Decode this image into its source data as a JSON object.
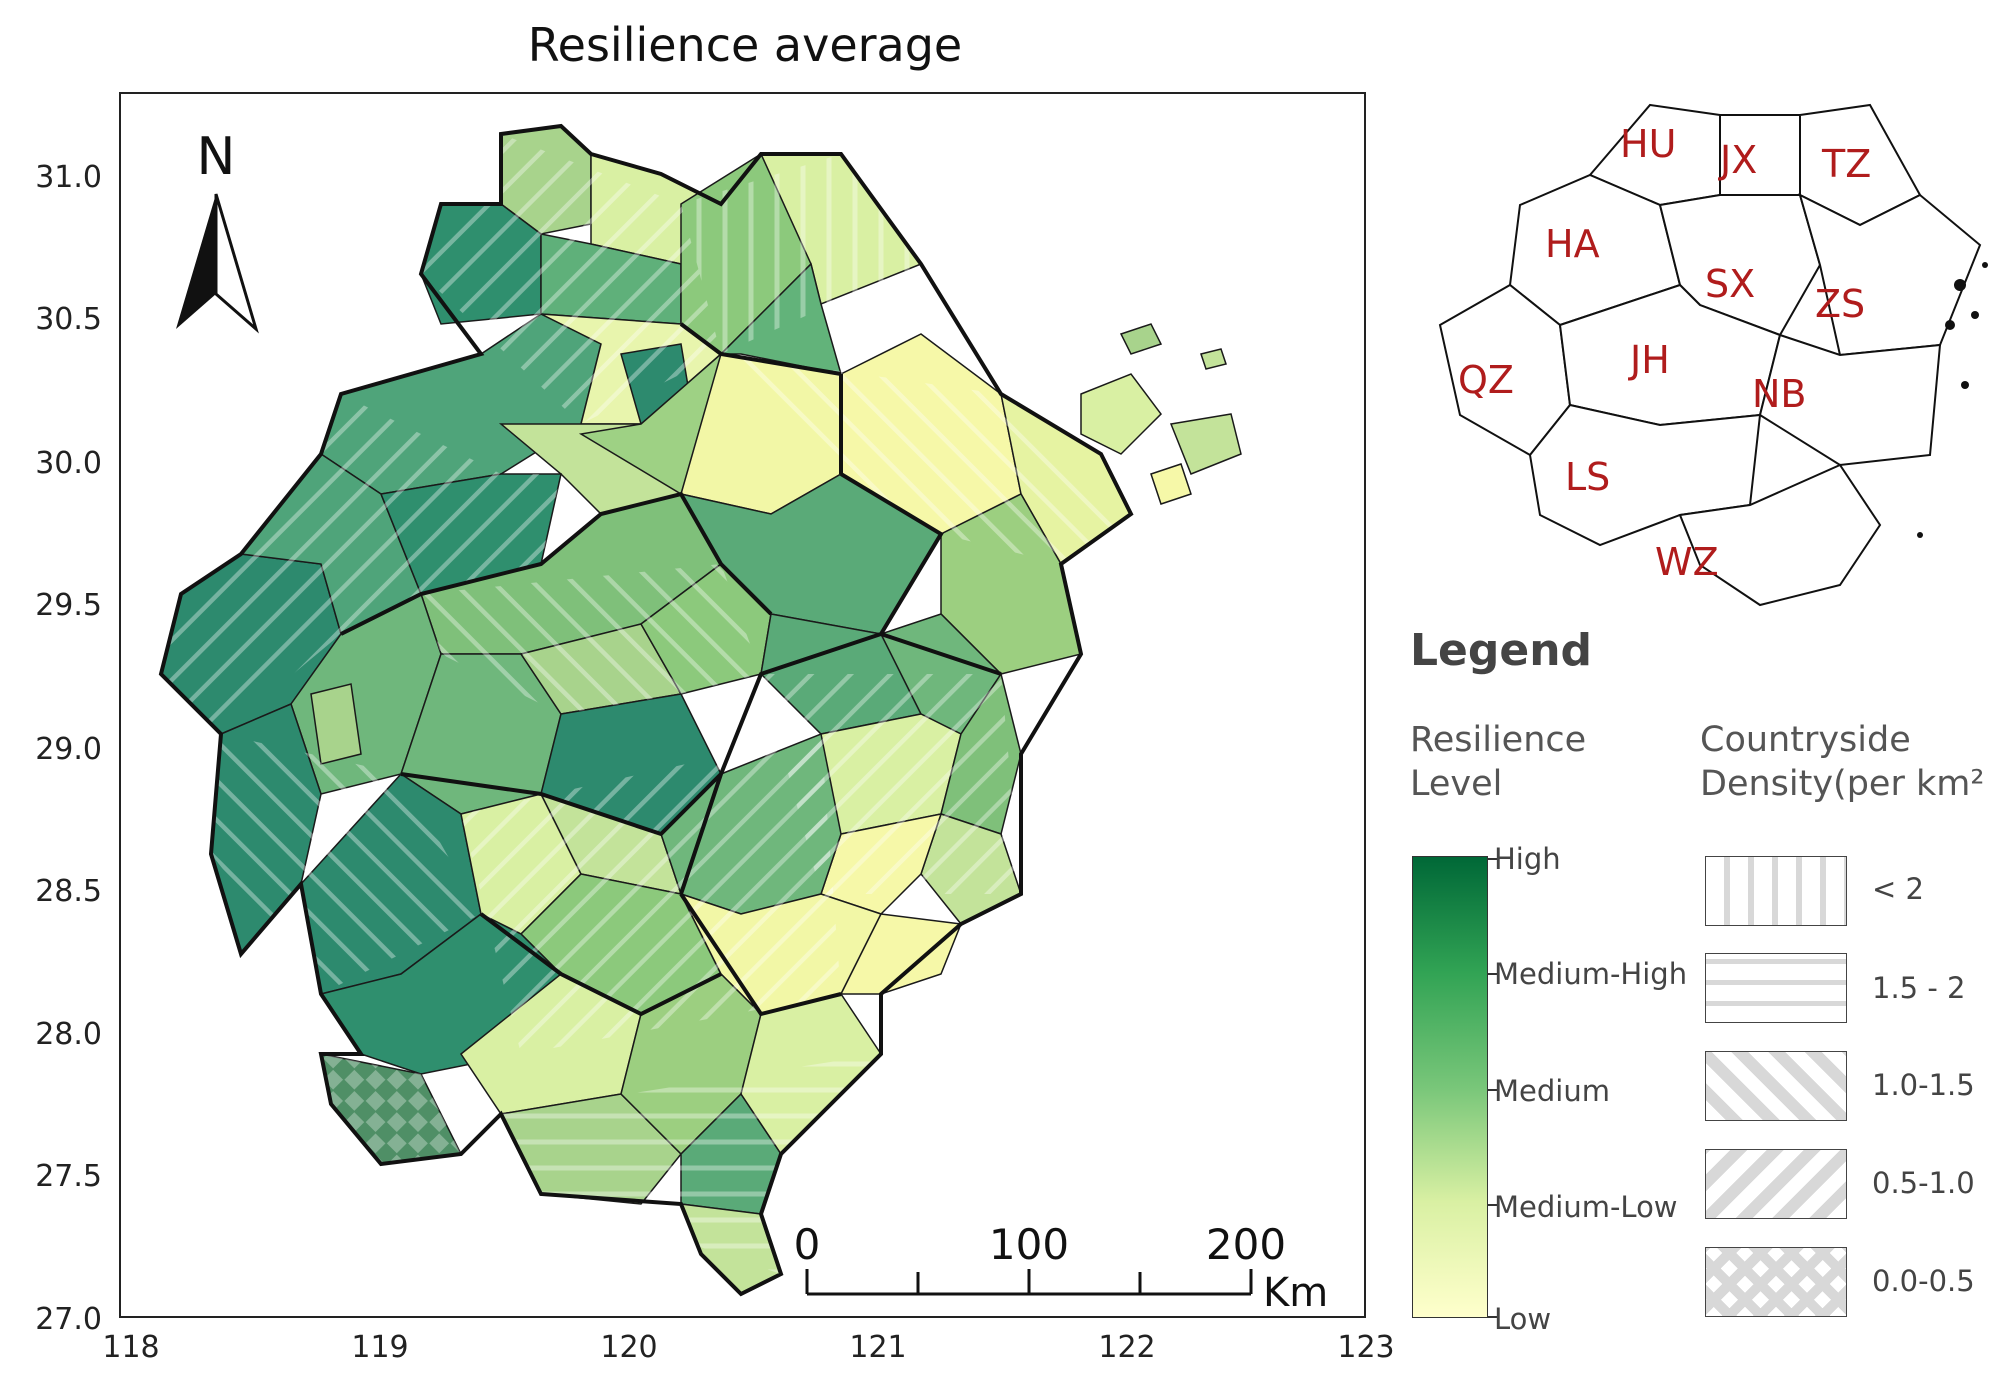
{
  "title": "Resilience average",
  "axes": {
    "x_ticks": [
      "118",
      "119",
      "120",
      "121",
      "122",
      "123"
    ],
    "y_ticks": [
      "31.0",
      "30.5",
      "30.0",
      "29.5",
      "29.0",
      "28.5",
      "28.0",
      "27.5",
      "27.0"
    ]
  },
  "north_arrow": {
    "label": "N",
    "icon": "north-arrow-icon"
  },
  "scale_bar": {
    "labels": [
      "0",
      "100",
      "200"
    ],
    "unit": "Km"
  },
  "inset_map": {
    "city_codes": [
      "HU",
      "JX",
      "TZ",
      "HA",
      "SX",
      "ZS",
      "QZ",
      "JH",
      "NB",
      "LS",
      "WZ"
    ]
  },
  "legend": {
    "title": "Legend",
    "resilience_heading": "Resilience\nLevel",
    "resilience_levels": [
      "High",
      "Medium-High",
      "Medium",
      "Medium-Low",
      "Low"
    ],
    "density_heading": "Countryside\nDensity(per km²",
    "density_classes": [
      {
        "label": "< 2",
        "pattern": "vertical"
      },
      {
        "label": "1.5 - 2",
        "pattern": "horizontal"
      },
      {
        "label": "1.0-1.5",
        "pattern": "diagonal-down"
      },
      {
        "label": "0.5-1.0",
        "pattern": "diagonal-up"
      },
      {
        "label": "0.0-0.5",
        "pattern": "crosshatch"
      }
    ]
  },
  "colors": {
    "low": "#ffffcc",
    "medium_low": "#d9f0a3",
    "medium": "#78c679",
    "medium_high": "#31a354",
    "high": "#006837",
    "inset_label": "#b01c1c"
  }
}
